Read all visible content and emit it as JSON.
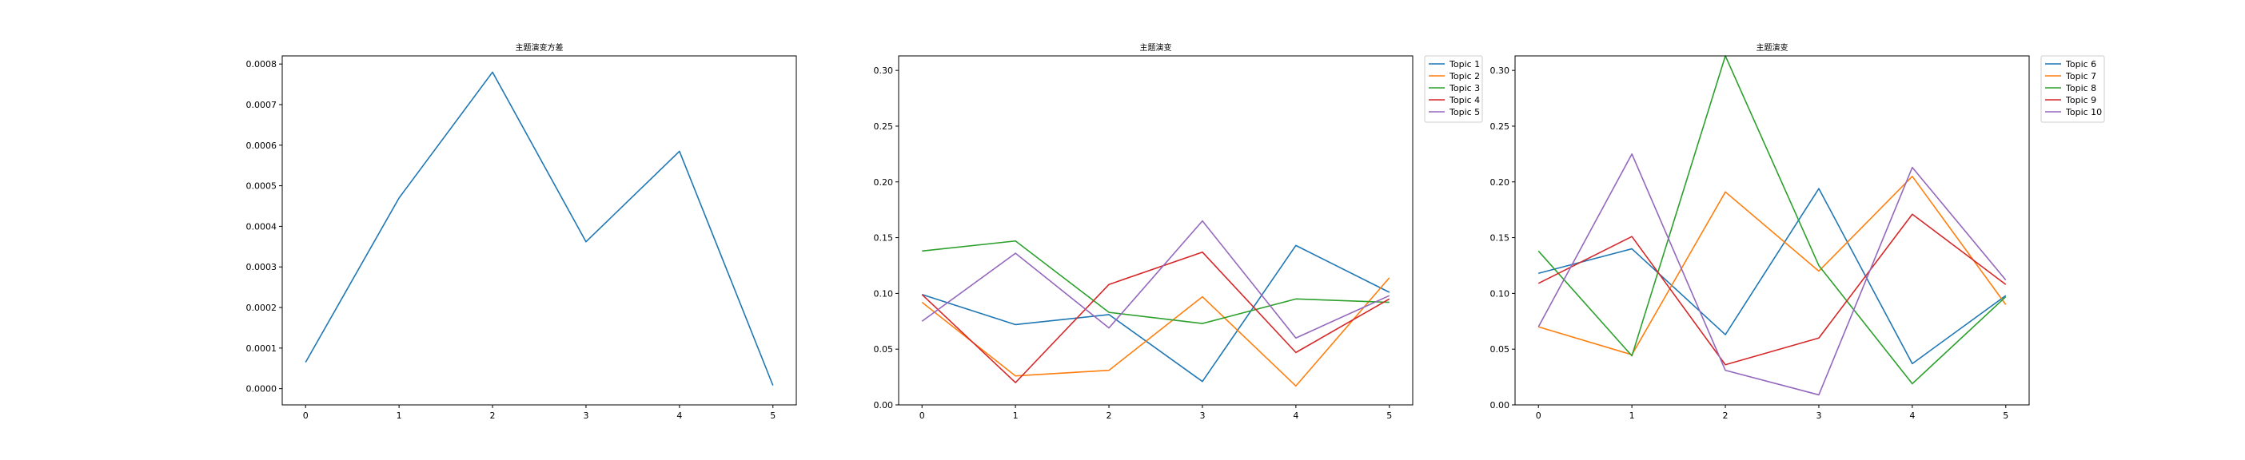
{
  "figure": {
    "background": "#ffffff"
  },
  "chart_data": [
    {
      "type": "line",
      "title": "主题演变方差",
      "xlabel": "",
      "ylabel": "",
      "x": [
        0,
        1,
        2,
        3,
        4,
        5
      ],
      "xlim": [
        -0.25,
        5.25
      ],
      "ylim": [
        -4e-05,
        0.00082
      ],
      "xticks": [
        "0",
        "1",
        "2",
        "3",
        "4",
        "5"
      ],
      "yticks": [
        "0.0000",
        "0.0001",
        "0.0002",
        "0.0003",
        "0.0004",
        "0.0005",
        "0.0006",
        "0.0007",
        "0.0008"
      ],
      "grid": false,
      "legend": null,
      "series": [
        {
          "color": "#1f77b4",
          "values": [
            6.5e-05,
            0.00047,
            0.00078,
            0.000362,
            0.000585,
            8e-06
          ]
        }
      ]
    },
    {
      "type": "line",
      "title": "主题演变",
      "xlabel": "",
      "ylabel": "",
      "x": [
        0,
        1,
        2,
        3,
        4,
        5
      ],
      "xlim": [
        -0.25,
        5.25
      ],
      "ylim": [
        0.0,
        0.313
      ],
      "xticks": [
        "0",
        "1",
        "2",
        "3",
        "4",
        "5"
      ],
      "yticks": [
        "0.00",
        "0.05",
        "0.10",
        "0.15",
        "0.20",
        "0.25",
        "0.30"
      ],
      "grid": false,
      "legend": "upper right, outside plot",
      "series": [
        {
          "name": "Topic 1",
          "color": "#1f77b4",
          "values": [
            0.099,
            0.072,
            0.081,
            0.021,
            0.143,
            0.101
          ]
        },
        {
          "name": "Topic 2",
          "color": "#ff7f0e",
          "values": [
            0.092,
            0.026,
            0.031,
            0.097,
            0.017,
            0.114
          ]
        },
        {
          "name": "Topic 3",
          "color": "#2ca02c",
          "values": [
            0.138,
            0.147,
            0.083,
            0.073,
            0.095,
            0.092
          ]
        },
        {
          "name": "Topic 4",
          "color": "#d62728",
          "values": [
            0.099,
            0.02,
            0.108,
            0.137,
            0.047,
            0.095
          ]
        },
        {
          "name": "Topic 5",
          "color": "#9467bd",
          "values": [
            0.075,
            0.136,
            0.069,
            0.165,
            0.06,
            0.098
          ]
        }
      ]
    },
    {
      "type": "line",
      "title": "主题演变",
      "xlabel": "",
      "ylabel": "",
      "x": [
        0,
        1,
        2,
        3,
        4,
        5
      ],
      "xlim": [
        -0.25,
        5.25
      ],
      "ylim": [
        0.0,
        0.313
      ],
      "xticks": [
        "0",
        "1",
        "2",
        "3",
        "4",
        "5"
      ],
      "yticks": [
        "0.00",
        "0.05",
        "0.10",
        "0.15",
        "0.20",
        "0.25",
        "0.30"
      ],
      "grid": false,
      "legend": "upper right, outside plot",
      "series": [
        {
          "name": "Topic 6",
          "color": "#1f77b4",
          "values": [
            0.118,
            0.14,
            0.063,
            0.194,
            0.037,
            0.098
          ]
        },
        {
          "name": "Topic 7",
          "color": "#ff7f0e",
          "values": [
            0.07,
            0.045,
            0.191,
            0.12,
            0.205,
            0.09
          ]
        },
        {
          "name": "Topic 8",
          "color": "#2ca02c",
          "values": [
            0.138,
            0.044,
            0.313,
            0.125,
            0.019,
            0.097
          ]
        },
        {
          "name": "Topic 9",
          "color": "#d62728",
          "values": [
            0.109,
            0.151,
            0.036,
            0.06,
            0.171,
            0.108
          ]
        },
        {
          "name": "Topic 10",
          "color": "#9467bd",
          "values": [
            0.07,
            0.225,
            0.031,
            0.009,
            0.213,
            0.112
          ]
        }
      ]
    }
  ]
}
